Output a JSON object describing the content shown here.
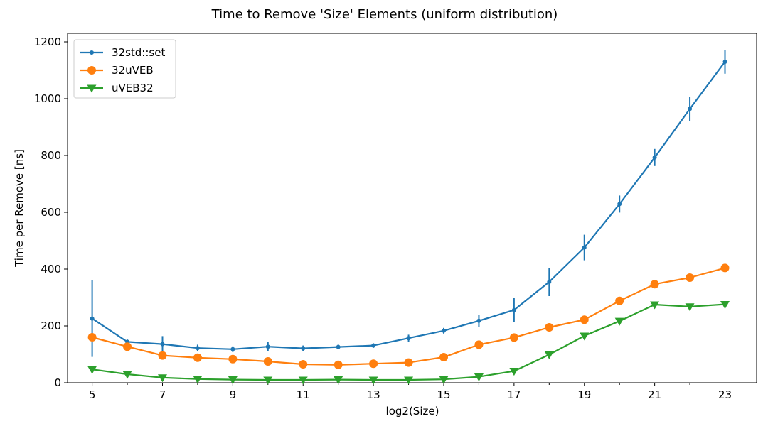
{
  "chart_data": {
    "type": "line",
    "title": "Time to Remove 'Size' Elements (uniform distribution)",
    "xlabel": "log2(Size)",
    "ylabel": "Time per Remove [ns]",
    "xlim": [
      4.3,
      23.9
    ],
    "ylim": [
      0,
      1230
    ],
    "xticks": [
      5,
      7,
      9,
      11,
      13,
      15,
      17,
      19,
      21,
      23
    ],
    "yticks": [
      0,
      200,
      400,
      600,
      800,
      1000,
      1200
    ],
    "legend_position": "top-left",
    "grid": false,
    "x": [
      5,
      6,
      7,
      8,
      9,
      10,
      11,
      12,
      13,
      14,
      15,
      16,
      17,
      18,
      19,
      20,
      21,
      22,
      23
    ],
    "series": [
      {
        "name": "32std::set",
        "color": "#1f77b4",
        "marker": "point",
        "values": [
          226,
          144,
          136,
          122,
          118,
          127,
          121,
          126,
          131,
          157,
          183,
          218,
          256,
          355,
          476,
          629,
          793,
          964,
          1130
        ],
        "errors": [
          135,
          8,
          28,
          12,
          10,
          16,
          10,
          8,
          8,
          12,
          10,
          22,
          42,
          50,
          45,
          30,
          30,
          42,
          42
        ]
      },
      {
        "name": "32uVEB",
        "color": "#ff7f0e",
        "marker": "circle",
        "values": [
          160,
          127,
          96,
          88,
          83,
          75,
          65,
          63,
          67,
          71,
          90,
          134,
          159,
          195,
          222,
          288,
          347,
          370,
          404
        ],
        "errors": [
          0,
          0,
          0,
          0,
          0,
          0,
          0,
          0,
          0,
          0,
          0,
          0,
          0,
          0,
          0,
          0,
          0,
          0,
          0
        ]
      },
      {
        "name": "uVEB32",
        "color": "#2ca02c",
        "marker": "triangle-down",
        "values": [
          47,
          30,
          18,
          13,
          11,
          10,
          10,
          11,
          10,
          10,
          12,
          21,
          41,
          99,
          165,
          217,
          275,
          268,
          276
        ],
        "errors": [
          0,
          0,
          0,
          0,
          0,
          0,
          0,
          0,
          0,
          0,
          0,
          0,
          0,
          0,
          0,
          0,
          0,
          0,
          0
        ]
      }
    ]
  }
}
